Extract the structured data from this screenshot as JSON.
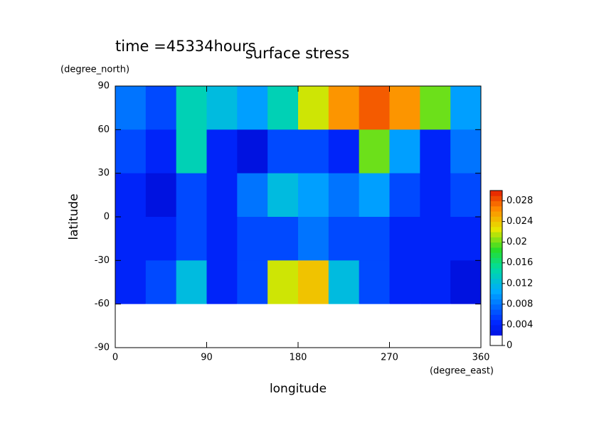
{
  "chart_data": {
    "type": "contour",
    "title": "surface stress",
    "subtitle": "time =45334hours",
    "x_label": "longitude",
    "x_unit": "(degree_east)",
    "y_label": "latitude",
    "y_unit": "(degree_north)",
    "x": [
      15,
      45,
      75,
      105,
      135,
      165,
      195,
      225,
      255,
      285,
      315,
      345
    ],
    "y": [
      75,
      45,
      15,
      -15,
      -45,
      -75
    ],
    "z": [
      [
        0.008,
        0.006,
        0.014,
        0.012,
        0.01,
        0.014,
        0.022,
        0.026,
        0.028,
        0.026,
        0.02,
        0.01
      ],
      [
        0.006,
        0.004,
        0.014,
        0.004,
        0.002,
        0.006,
        0.006,
        0.004,
        0.02,
        0.01,
        0.004,
        0.008
      ],
      [
        0.004,
        0.002,
        0.006,
        0.004,
        0.008,
        0.012,
        0.01,
        0.008,
        0.01,
        0.006,
        0.004,
        0.006
      ],
      [
        0.004,
        0.004,
        0.006,
        0.004,
        0.006,
        0.006,
        0.008,
        0.006,
        0.006,
        0.004,
        0.004,
        0.004
      ],
      [
        0.004,
        0.006,
        0.012,
        0.004,
        0.006,
        0.022,
        0.024,
        0.012,
        0.006,
        0.004,
        0.004,
        0.002
      ],
      [
        0,
        0,
        0,
        0,
        0,
        0,
        0,
        0,
        0,
        0,
        0,
        0
      ]
    ],
    "xlim": [
      0,
      360
    ],
    "xticks": [
      0,
      90,
      180,
      270,
      360
    ],
    "ylim": [
      -90,
      90
    ],
    "yticks": [
      -90,
      -60,
      -30,
      0,
      30,
      60,
      90
    ],
    "clim": [
      0,
      0.03
    ],
    "cticks": [
      0,
      0.004,
      0.008,
      0.012,
      0.016,
      0.02,
      0.024,
      0.028
    ]
  }
}
